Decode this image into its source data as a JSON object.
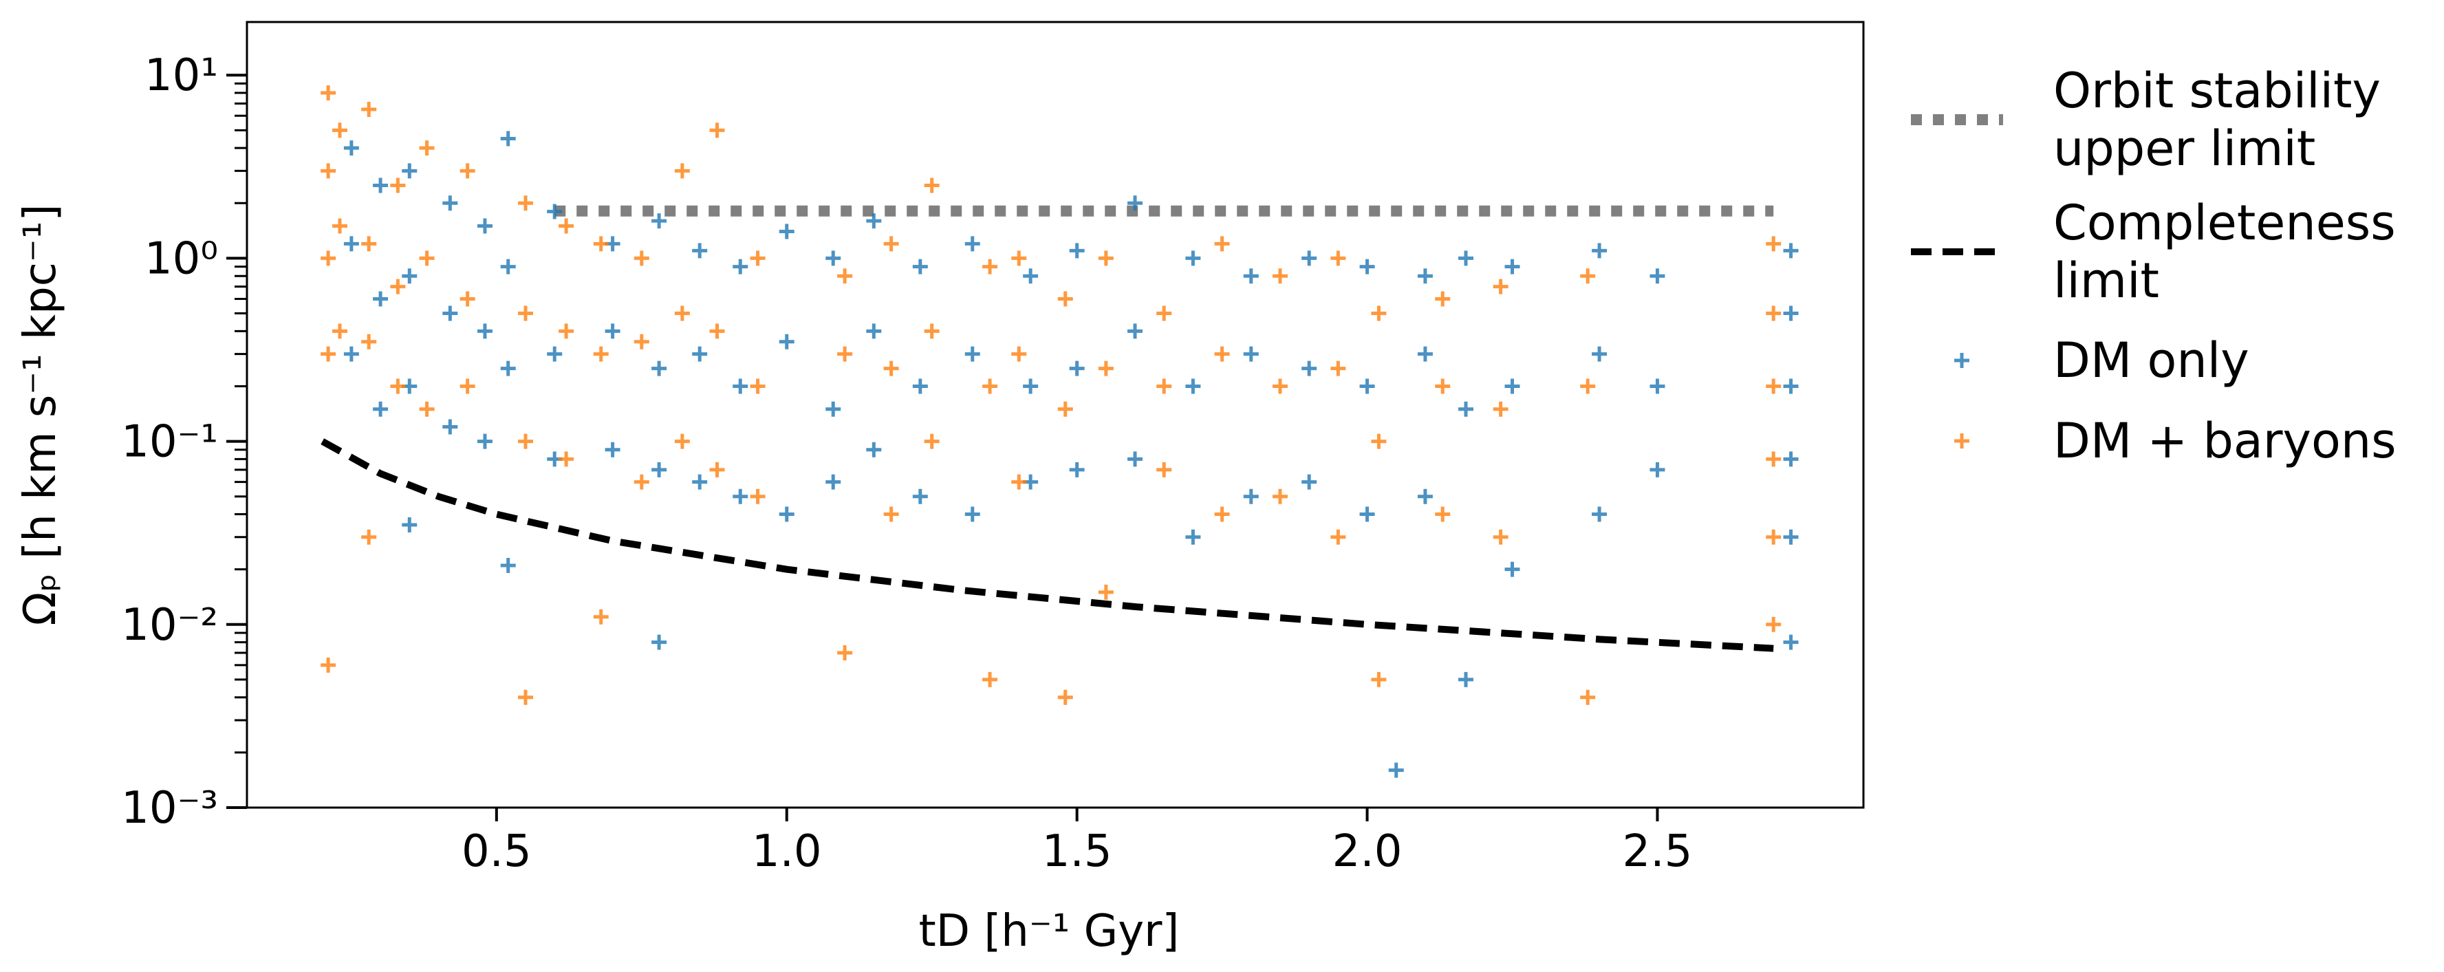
{
  "chart_data": {
    "type": "scatter",
    "xlabel": "tD [h⁻¹ Gyr]",
    "ylabel": "Ωₚ [h km s⁻¹ kpc⁻¹]",
    "xlim": [
      0.07,
      2.855
    ],
    "ylim": [
      0.001,
      19.5
    ],
    "yscale": "log",
    "xticks": [
      0.5,
      {
        "value": 1,
        "label": "1.0"
      },
      1.5,
      {
        "value": 2,
        "label": "2.0"
      },
      2.5
    ],
    "yticks": [
      {
        "value": 0.001,
        "label": "10⁻³"
      },
      {
        "value": 0.01,
        "label": "10⁻²"
      },
      {
        "value": 0.1,
        "label": "10⁻¹"
      },
      {
        "value": 1,
        "label": "10⁰"
      },
      {
        "value": 10,
        "label": "10¹"
      }
    ],
    "yminorticks": [
      0.002,
      0.003,
      0.004,
      0.005,
      0.006,
      0.007,
      0.008,
      0.009,
      0.02,
      0.03,
      0.04,
      0.05,
      0.06,
      0.07,
      0.08,
      0.09,
      0.2,
      0.3,
      0.4,
      0.5,
      0.6,
      0.7,
      0.8,
      0.9,
      2,
      3,
      4,
      5,
      6,
      7,
      8,
      9
    ],
    "series": [
      {
        "name": "Orbit stability\nupper limit",
        "kind": "line",
        "style": "dotted",
        "color": "#808080",
        "x": [
          0.6,
          2.7
        ],
        "values": [
          1.81,
          1.81
        ]
      },
      {
        "name": "Completeness\nlimit",
        "kind": "line",
        "style": "dashed",
        "color": "#000000",
        "x": [
          0.2,
          0.3,
          0.4,
          0.5,
          0.7,
          1.0,
          1.3,
          1.6,
          2.0,
          2.4,
          2.7
        ],
        "values": [
          0.1,
          0.0667,
          0.05,
          0.04,
          0.0286,
          0.02,
          0.0154,
          0.0125,
          0.01,
          0.0083,
          0.0074
        ]
      },
      {
        "name": "DM only",
        "kind": "points",
        "color": "#1f77b4",
        "x": [
          0.25,
          0.25,
          0.25,
          0.3,
          0.3,
          0.3,
          0.35,
          0.35,
          0.35,
          0.35,
          0.42,
          0.42,
          0.42,
          0.48,
          0.48,
          0.48,
          0.52,
          0.52,
          0.52,
          0.52,
          0.6,
          0.6,
          0.6,
          0.7,
          0.7,
          0.7,
          0.78,
          0.78,
          0.78,
          0.78,
          0.85,
          0.85,
          0.85,
          0.92,
          0.92,
          0.92,
          1.0,
          1.0,
          1.0,
          1.08,
          1.08,
          1.08,
          1.15,
          1.15,
          1.15,
          1.23,
          1.23,
          1.23,
          1.32,
          1.32,
          1.32,
          1.42,
          1.42,
          1.42,
          1.5,
          1.5,
          1.5,
          1.6,
          1.6,
          1.6,
          1.7,
          1.7,
          1.7,
          1.8,
          1.8,
          1.8,
          1.9,
          1.9,
          1.9,
          2.0,
          2.0,
          2.0,
          2.05,
          2.1,
          2.1,
          2.1,
          2.17,
          2.17,
          2.17,
          2.25,
          2.25,
          2.25,
          2.4,
          2.4,
          2.4,
          2.5,
          2.5,
          2.5,
          2.73,
          2.73,
          2.73,
          2.73,
          2.73,
          2.73
        ],
        "values": [
          4.0,
          1.2,
          0.3,
          2.5,
          0.6,
          0.15,
          3.0,
          0.8,
          0.2,
          0.035,
          2.0,
          0.5,
          0.12,
          1.5,
          0.4,
          0.1,
          4.5,
          0.9,
          0.25,
          0.021,
          1.8,
          0.3,
          0.08,
          1.2,
          0.4,
          0.09,
          1.6,
          0.25,
          0.07,
          0.008,
          1.1,
          0.3,
          0.06,
          0.9,
          0.2,
          0.05,
          1.4,
          0.35,
          0.04,
          1.0,
          0.15,
          0.06,
          1.6,
          0.4,
          0.09,
          0.9,
          0.2,
          0.05,
          1.2,
          0.3,
          0.04,
          0.8,
          0.2,
          0.06,
          1.1,
          0.25,
          0.07,
          2.0,
          0.4,
          0.08,
          1.0,
          0.2,
          0.03,
          0.8,
          0.3,
          0.05,
          1.0,
          0.25,
          0.06,
          0.9,
          0.2,
          0.04,
          0.0016,
          0.8,
          0.3,
          0.05,
          1.0,
          0.15,
          0.005,
          0.9,
          0.2,
          0.02,
          1.1,
          0.3,
          0.04,
          0.8,
          0.2,
          0.07,
          1.1,
          0.5,
          0.2,
          0.08,
          0.03,
          0.008
        ]
      },
      {
        "name": "DM + baryons",
        "kind": "points",
        "color": "#ff7f0e",
        "x": [
          0.21,
          0.21,
          0.21,
          0.21,
          0.21,
          0.23,
          0.23,
          0.23,
          0.28,
          0.28,
          0.28,
          0.28,
          0.33,
          0.33,
          0.33,
          0.38,
          0.38,
          0.38,
          0.45,
          0.45,
          0.45,
          0.55,
          0.55,
          0.55,
          0.55,
          0.62,
          0.62,
          0.62,
          0.68,
          0.68,
          0.68,
          0.75,
          0.75,
          0.75,
          0.82,
          0.82,
          0.82,
          0.88,
          0.88,
          0.88,
          0.95,
          0.95,
          0.95,
          1.1,
          1.1,
          1.1,
          1.18,
          1.18,
          1.18,
          1.25,
          1.25,
          1.25,
          1.35,
          1.35,
          1.35,
          1.4,
          1.4,
          1.4,
          1.48,
          1.48,
          1.48,
          1.55,
          1.55,
          1.55,
          1.65,
          1.65,
          1.65,
          1.75,
          1.75,
          1.75,
          1.85,
          1.85,
          1.85,
          1.95,
          1.95,
          1.95,
          2.02,
          2.02,
          2.02,
          2.13,
          2.13,
          2.13,
          2.23,
          2.23,
          2.23,
          2.38,
          2.38,
          2.38,
          2.7,
          2.7,
          2.7,
          2.7,
          2.7,
          2.7
        ],
        "values": [
          8.0,
          3.0,
          1.0,
          0.3,
          0.006,
          5.0,
          1.5,
          0.4,
          6.5,
          1.2,
          0.35,
          0.03,
          2.5,
          0.7,
          0.2,
          4.0,
          1.0,
          0.15,
          3.0,
          0.6,
          0.2,
          2.0,
          0.5,
          0.1,
          0.004,
          1.5,
          0.4,
          0.08,
          1.2,
          0.3,
          0.011,
          1.0,
          0.35,
          0.06,
          3.0,
          0.5,
          0.1,
          5.0,
          0.4,
          0.07,
          1.0,
          0.2,
          0.05,
          0.8,
          0.3,
          0.007,
          1.2,
          0.25,
          0.04,
          2.5,
          0.4,
          0.1,
          0.9,
          0.2,
          0.005,
          1.0,
          0.3,
          0.06,
          0.6,
          0.15,
          0.004,
          1.0,
          0.25,
          0.015,
          0.5,
          0.2,
          0.07,
          1.2,
          0.3,
          0.04,
          0.8,
          0.2,
          0.05,
          1.0,
          0.25,
          0.03,
          0.5,
          0.1,
          0.005,
          0.6,
          0.2,
          0.04,
          0.7,
          0.15,
          0.03,
          0.8,
          0.2,
          0.004,
          1.2,
          0.5,
          0.2,
          0.08,
          0.03,
          0.01
        ]
      }
    ]
  }
}
